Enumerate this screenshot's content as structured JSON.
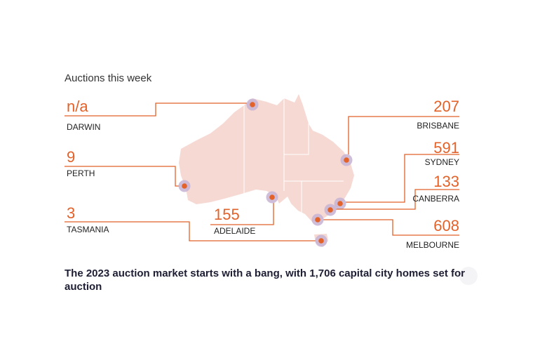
{
  "title": "Auctions this week",
  "cities": [
    {
      "name": "DARWIN",
      "value": "n/a"
    },
    {
      "name": "PERTH",
      "value": 9
    },
    {
      "name": "TASMANIA",
      "value": 3
    },
    {
      "name": "ADELAIDE",
      "value": 155
    },
    {
      "name": "BRISBANE",
      "value": 207
    },
    {
      "name": "SYDNEY",
      "value": 591
    },
    {
      "name": "CANBERRA",
      "value": 133
    },
    {
      "name": "MELBOURNE",
      "value": 608
    }
  ],
  "caption": "The 2023 auction market starts with a bang, with 1,706 capital city homes set for auction"
}
